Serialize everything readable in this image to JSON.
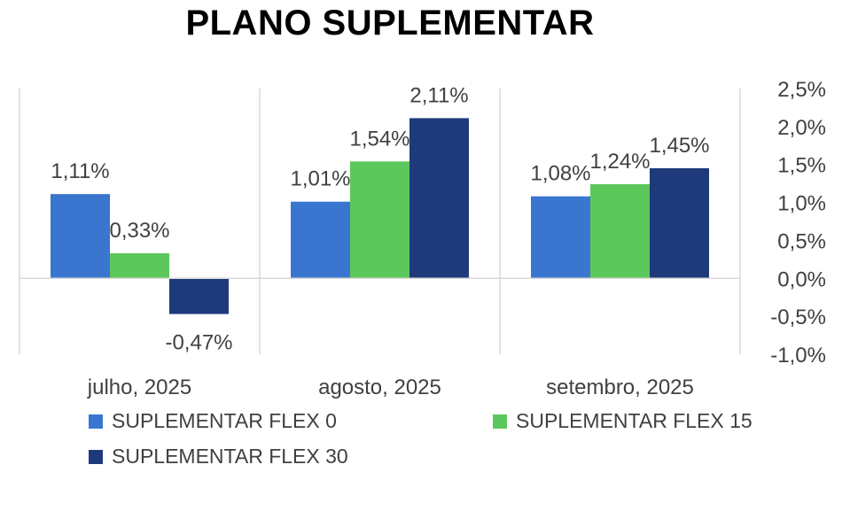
{
  "chart_data": {
    "type": "bar",
    "title": "PLANO SUPLEMENTAR",
    "categories": [
      "julho, 2025",
      "agosto, 2025",
      "setembro, 2025"
    ],
    "series": [
      {
        "name": "SUPLEMENTAR FLEX 0",
        "color": "#3a76d0",
        "values": [
          1.11,
          1.01,
          1.08
        ],
        "labels": [
          "1,11%",
          "1,01%",
          "1,08%"
        ]
      },
      {
        "name": "SUPLEMENTAR FLEX 15",
        "color": "#5cc85c",
        "values": [
          0.33,
          1.54,
          1.24
        ],
        "labels": [
          "0,33%",
          "1,54%",
          "1,24%"
        ]
      },
      {
        "name": "SUPLEMENTAR FLEX 30",
        "color": "#1f3a7a",
        "values": [
          -0.47,
          2.11,
          1.45
        ],
        "labels": [
          "-0,47%",
          "2,11%",
          "1,45%"
        ]
      }
    ],
    "y_axis": {
      "position": "right",
      "ylim": [
        -1.0,
        2.5
      ],
      "ticks": [
        2.5,
        2.0,
        1.5,
        1.0,
        0.5,
        0.0,
        -0.5,
        -1.0
      ],
      "tick_labels": [
        "2,5%",
        "2,0%",
        "1,5%",
        "1,0%",
        "0,5%",
        "0,0%",
        "-0,5%",
        "-1,0%"
      ]
    },
    "grid": "vertical category separators",
    "legend_position": "bottom"
  }
}
